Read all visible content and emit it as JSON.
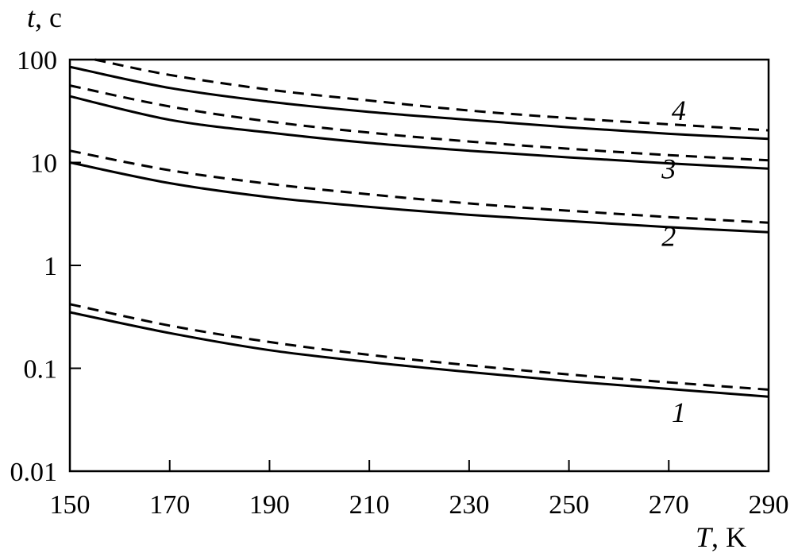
{
  "chart_data": {
    "type": "line",
    "y_scale": "log",
    "xlim": [
      150,
      290
    ],
    "ylim": [
      0.01,
      100
    ],
    "x_ticks": [
      "150",
      "170",
      "190",
      "210",
      "230",
      "250",
      "270",
      "290"
    ],
    "y_ticks": [
      "0.01",
      "0.1",
      "1",
      "10",
      "100"
    ],
    "x_axis_label": {
      "var": "T",
      "unit": ", K"
    },
    "y_axis_label": {
      "var": "t",
      "unit": ", с"
    },
    "grid": false,
    "series": [
      {
        "label": "1",
        "style": "solid",
        "x": [
          150,
          170,
          190,
          210,
          230,
          250,
          270,
          290
        ],
        "y": [
          0.35,
          0.22,
          0.15,
          0.115,
          0.092,
          0.075,
          0.063,
          0.053
        ]
      },
      {
        "label": "1",
        "style": "dashed",
        "x": [
          150,
          170,
          190,
          210,
          230,
          250,
          270,
          290
        ],
        "y": [
          0.42,
          0.26,
          0.18,
          0.135,
          0.107,
          0.087,
          0.073,
          0.062
        ]
      },
      {
        "label": "2",
        "style": "solid",
        "x": [
          150,
          170,
          190,
          210,
          230,
          250,
          270,
          290
        ],
        "y": [
          10,
          6.3,
          4.6,
          3.7,
          3.1,
          2.7,
          2.35,
          2.1
        ]
      },
      {
        "label": "2",
        "style": "dashed",
        "x": [
          150,
          170,
          190,
          210,
          230,
          250,
          270,
          290
        ],
        "y": [
          13,
          8.4,
          6.2,
          4.9,
          4.0,
          3.4,
          2.95,
          2.6
        ]
      },
      {
        "label": "3",
        "style": "solid",
        "x": [
          150,
          170,
          190,
          210,
          230,
          250,
          270,
          290
        ],
        "y": [
          44,
          26,
          19.5,
          15.5,
          13,
          11.2,
          9.8,
          8.7
        ]
      },
      {
        "label": "3",
        "style": "dashed",
        "x": [
          150,
          170,
          190,
          210,
          230,
          250,
          270,
          290
        ],
        "y": [
          56,
          35,
          25,
          19.5,
          16,
          13.6,
          11.8,
          10.5
        ]
      },
      {
        "label": "4",
        "style": "solid",
        "x": [
          150,
          170,
          190,
          210,
          230,
          250,
          270,
          290
        ],
        "y": [
          85,
          53,
          39,
          31,
          26,
          22,
          19,
          17
        ]
      },
      {
        "label": "4",
        "style": "dashed",
        "x": [
          155,
          170,
          190,
          210,
          230,
          250,
          270,
          290
        ],
        "y": [
          100,
          71,
          51,
          40,
          32,
          27,
          23.5,
          20.5
        ]
      }
    ],
    "curve_labels": [
      {
        "text": "1",
        "x": 272,
        "y": 0.03
      },
      {
        "text": "2",
        "x": 270,
        "y": 1.55
      },
      {
        "text": "3",
        "x": 270,
        "y": 7.0
      },
      {
        "text": "4",
        "x": 272,
        "y": 26
      }
    ]
  }
}
